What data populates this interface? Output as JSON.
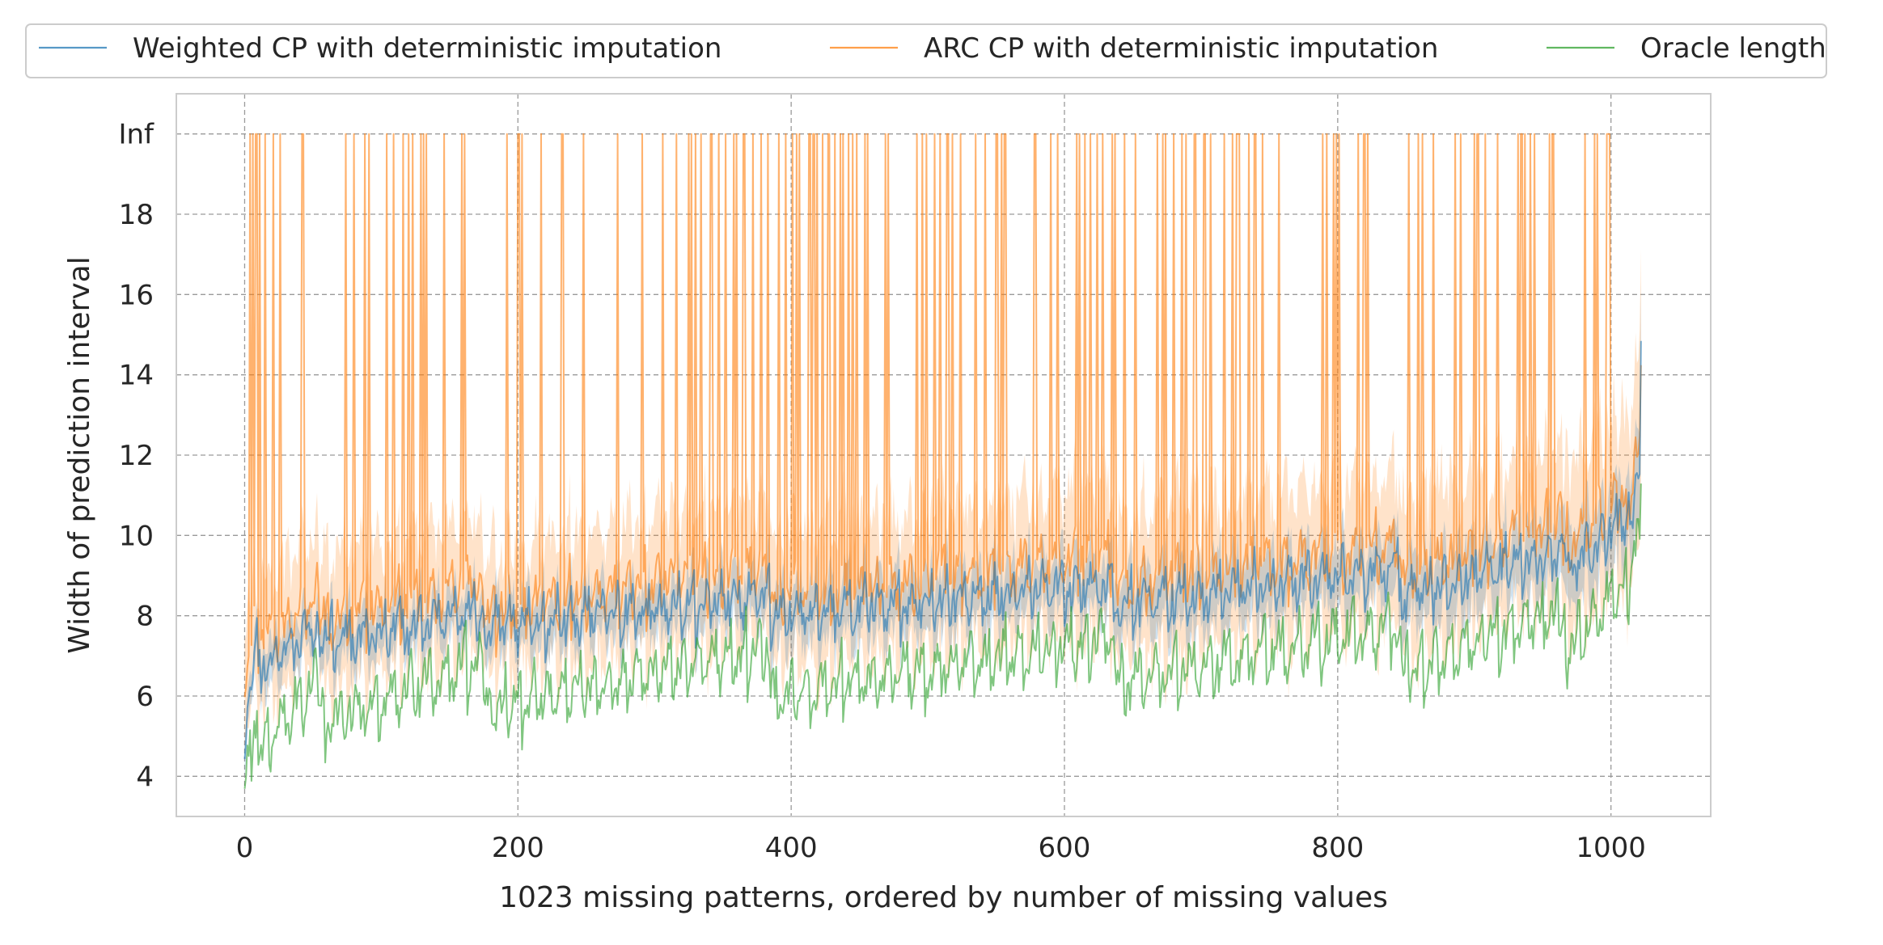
{
  "chart_data": {
    "type": "line",
    "xlabel": "1023 missing patterns, ordered by number of missing values",
    "ylabel": "Width of prediction interval",
    "xlim": [
      -50,
      1073
    ],
    "ylim": [
      3.0,
      21.0
    ],
    "x_ticks": [
      0,
      200,
      400,
      600,
      800,
      1000
    ],
    "x_tick_labels": [
      "0",
      "200",
      "400",
      "600",
      "800",
      "1000"
    ],
    "y_ticks": [
      4,
      6,
      8,
      10,
      12,
      14,
      16,
      18,
      20
    ],
    "y_tick_labels": [
      "4",
      "6",
      "8",
      "10",
      "12",
      "14",
      "16",
      "18",
      "Inf"
    ],
    "inf_plot_value": 20,
    "grid": true,
    "legend_position": "top",
    "n_points": 1023,
    "series": [
      {
        "name": "Weighted CP with deterministic imputation",
        "color": "#1f77b4",
        "band": "shaded",
        "block_starts": [
          5.6,
          6.8,
          7.4,
          7.8,
          8.1,
          8.4,
          8.6,
          9.3,
          10.4,
          14.6
        ],
        "block_ends": [
          7.4,
          7.9,
          8.3,
          8.6,
          8.9,
          9.3,
          9.8,
          10.6,
          11.9,
          14.6
        ],
        "band_halfwidth": [
          0.5,
          0.55,
          0.6,
          0.65,
          0.7,
          0.75,
          0.85,
          0.95,
          1.1,
          1.6
        ]
      },
      {
        "name": "ARC CP with deterministic imputation",
        "color": "#ff7f0e",
        "band": "shaded",
        "inf_share": 0.16,
        "block_starts": [
          6.2,
          7.3,
          7.9,
          8.2,
          8.5,
          8.8,
          9.1,
          9.8,
          10.9,
          14.8
        ],
        "block_ends": [
          8.2,
          8.7,
          9.0,
          9.3,
          9.6,
          9.9,
          10.4,
          11.3,
          12.4,
          14.8
        ],
        "band_halfwidth": [
          1.4,
          1.5,
          1.6,
          1.6,
          1.7,
          1.8,
          1.9,
          2.1,
          2.3,
          2.8
        ]
      },
      {
        "name": "Oracle length",
        "color": "#2ca02c",
        "band": "none",
        "block_starts": [
          3.4,
          4.7,
          5.4,
          5.8,
          6.1,
          6.4,
          6.7,
          7.2,
          8.3,
          11.0
        ],
        "block_ends": [
          5.9,
          6.6,
          7.0,
          7.3,
          7.6,
          7.9,
          8.3,
          9.1,
          10.4,
          11.0
        ]
      }
    ],
    "block_boundaries": [
      0,
      10,
      55,
      175,
      385,
      637,
      847,
      967,
      1012,
      1022,
      1023
    ]
  }
}
